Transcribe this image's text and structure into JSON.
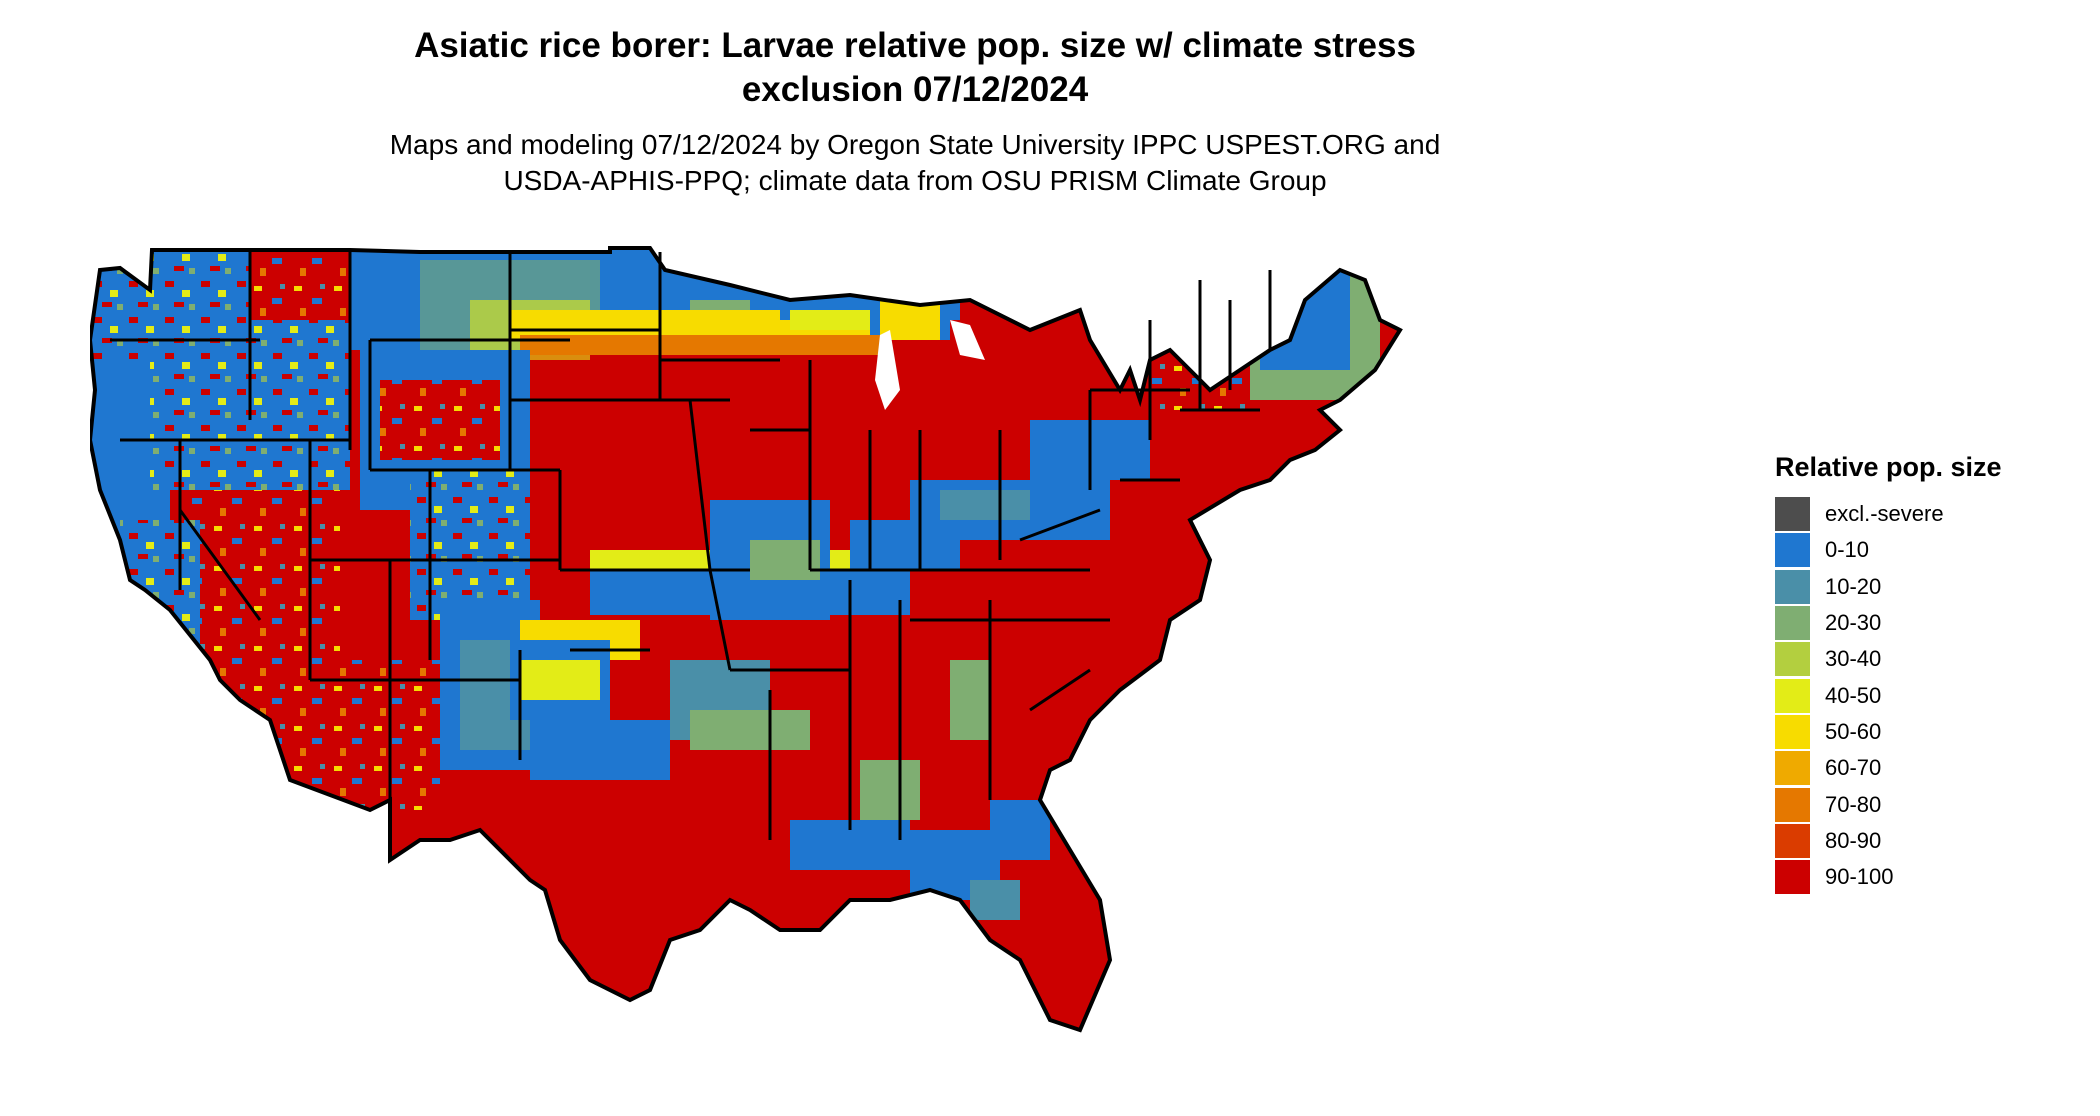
{
  "title": {
    "line1": "Asiatic rice borer: Larvae relative pop. size w/ climate stress",
    "line2": "exclusion 07/12/2024"
  },
  "subtitle": {
    "line1": "Maps and modeling 07/12/2024 by Oregon State University IPPC USPEST.ORG and",
    "line2": "USDA-APHIS-PPQ; climate data from OSU PRISM Climate Group"
  },
  "legend": {
    "title": "Relative pop. size",
    "items": [
      {
        "label": "excl.-severe",
        "color": "#4d4d4d"
      },
      {
        "label": "0-10",
        "color": "#1f77d0"
      },
      {
        "label": "10-20",
        "color": "#4a8fa8"
      },
      {
        "label": "20-30",
        "color": "#7fae72"
      },
      {
        "label": "30-40",
        "color": "#b3cf3f"
      },
      {
        "label": "40-50",
        "color": "#e3ec17"
      },
      {
        "label": "50-60",
        "color": "#f7dc00"
      },
      {
        "label": "60-70",
        "color": "#efaa00"
      },
      {
        "label": "70-80",
        "color": "#e57800"
      },
      {
        "label": "80-90",
        "color": "#da3c00"
      },
      {
        "label": "90-100",
        "color": "#cc0000"
      }
    ]
  },
  "map": {
    "background_class": "90-100",
    "outline_color": "#000000"
  }
}
